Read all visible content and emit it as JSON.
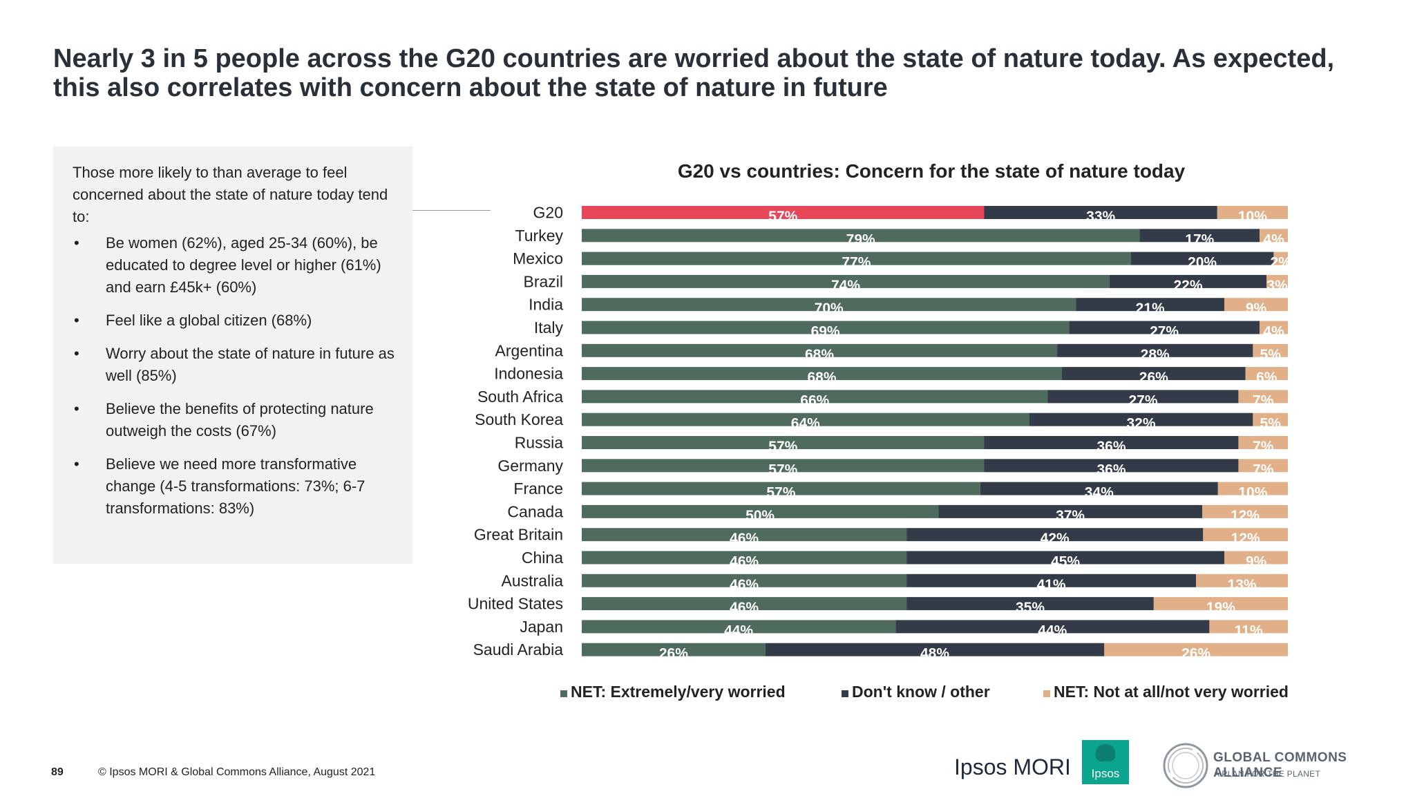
{
  "headline": "Nearly 3 in 5 people across the G20 countries are worried about the state of nature today. As expected, this also correlates with concern about the state of nature in future",
  "sidebar": {
    "intro": "Those more likely to than average to feel concerned about the state of nature today tend to:",
    "bullet_symbol": "•",
    "items": [
      "Be women (62%), aged 25-34 (60%), be educated to degree level or higher (61%) and earn £45k+ (60%)",
      "Feel like a global citizen (68%)",
      "Worry about the state of nature in future as well (85%)",
      "Believe the benefits of protecting nature outweigh the costs (67%)",
      "Believe we need more transformative change (4-5 transformations: 73%; 6-7 transformations: 83%)"
    ]
  },
  "chart_data": {
    "type": "bar",
    "orientation": "horizontal",
    "stacked": true,
    "normalized": true,
    "title": "G20 vs countries: Concern for the state of nature today",
    "categories": [
      "G20",
      "Turkey",
      "Mexico",
      "Brazil",
      "India",
      "Italy",
      "Argentina",
      "Indonesia",
      "South Africa",
      "South Korea",
      "Russia",
      "Germany",
      "France",
      "Canada",
      "Great Britain",
      "China",
      "Australia",
      "United States",
      "Japan",
      "Saudi Arabia"
    ],
    "series": [
      {
        "name": "NET: Extremely/very worried",
        "color": "#4e6b5e",
        "values": [
          57,
          79,
          77,
          74,
          70,
          69,
          68,
          68,
          66,
          64,
          57,
          57,
          57,
          50,
          46,
          46,
          46,
          46,
          44,
          26
        ]
      },
      {
        "name": "Don't know / other",
        "color": "#323b47",
        "values": [
          33,
          17,
          20,
          22,
          21,
          27,
          28,
          26,
          27,
          32,
          36,
          36,
          34,
          37,
          42,
          45,
          41,
          35,
          44,
          48
        ]
      },
      {
        "name": "NET: Not at all/not very worried",
        "color": "#e2b088",
        "values": [
          10,
          4,
          2,
          3,
          9,
          4,
          5,
          6,
          7,
          5,
          7,
          7,
          10,
          12,
          12,
          9,
          13,
          19,
          11,
          26
        ]
      }
    ],
    "highlight": {
      "category": "G20",
      "series": "NET: Extremely/very worried",
      "color": "#e8475a"
    },
    "value_suffix": "%",
    "legend_position": "bottom",
    "grid": false
  },
  "footer": {
    "page_number": "89",
    "copyright": "© Ipsos MORI & Global Commons Alliance, August 2021"
  },
  "logos": {
    "ipsos_mori": "Ipsos MORI",
    "ipsos_badge": "Ipsos",
    "gca_title": "GLOBAL COMMONS ALLIANCE",
    "gca_tagline": "A PLAN FOR THE PLANET",
    "ipsos_color": "#0aa58c"
  }
}
